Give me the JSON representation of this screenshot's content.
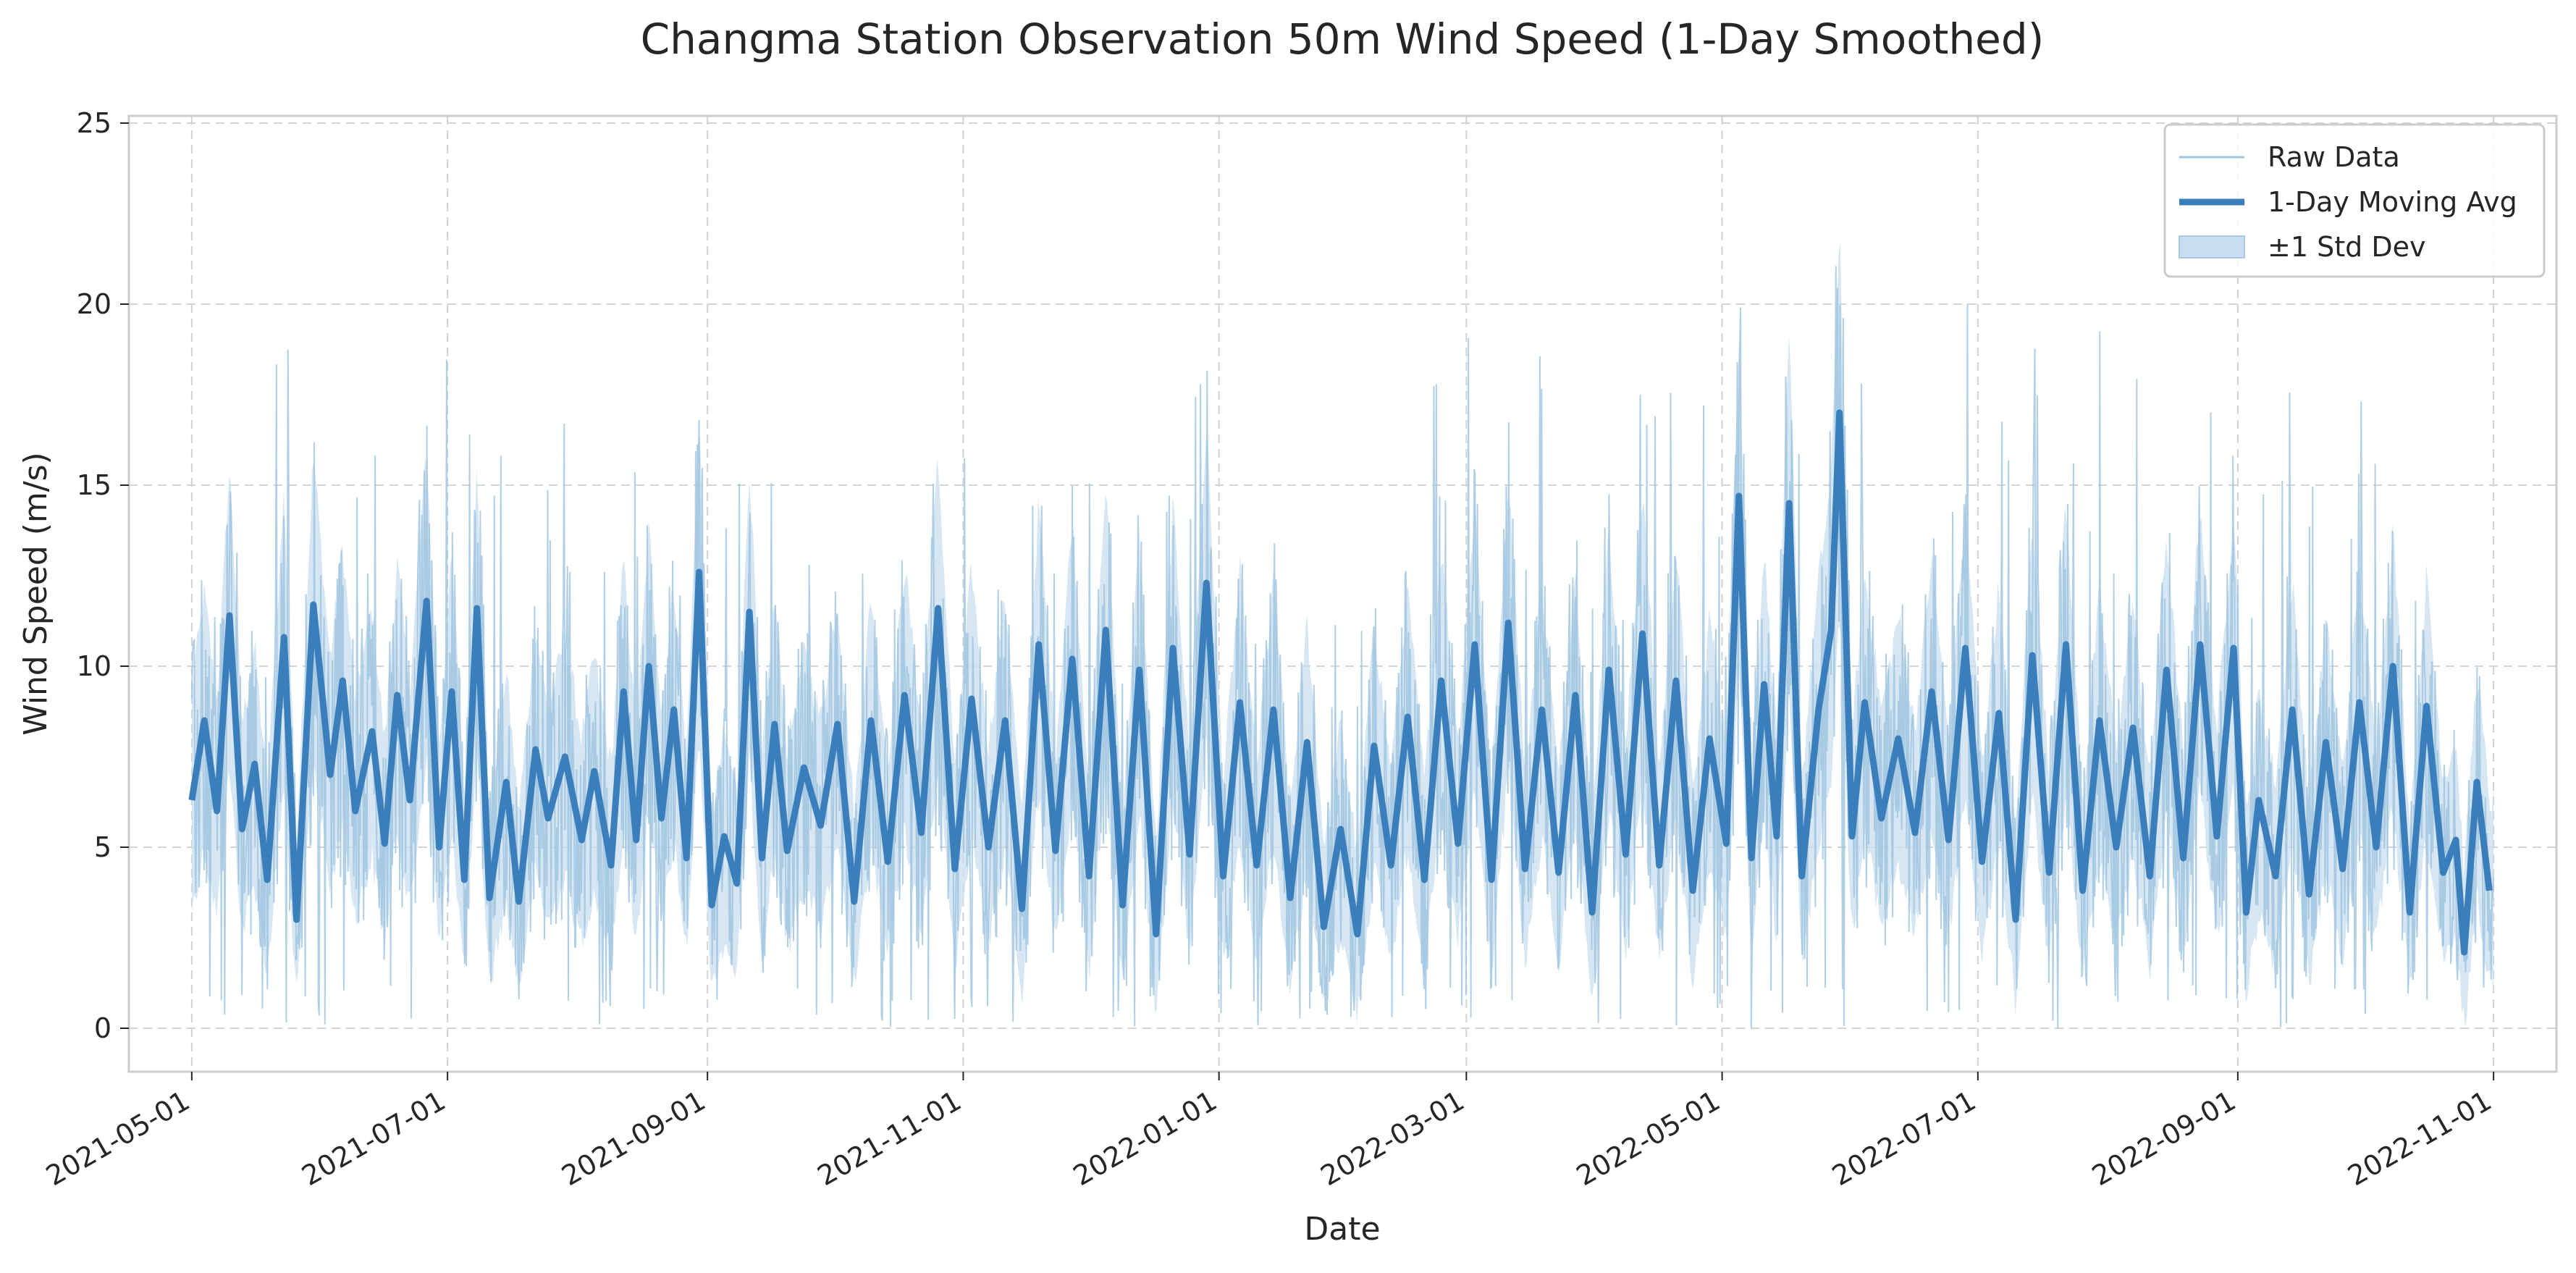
{
  "chart_data": {
    "type": "line",
    "title": "Changma Station Observation 50m Wind Speed (1-Day Smoothed)",
    "xlabel": "Date",
    "ylabel": "Wind Speed (m/s)",
    "x_range": [
      "2021-05-01",
      "2022-11-01"
    ],
    "x_ticks": [
      "2021-05-01",
      "2021-07-01",
      "2021-09-01",
      "2021-11-01",
      "2022-01-01",
      "2022-03-01",
      "2022-05-01",
      "2022-07-01",
      "2022-09-01",
      "2022-11-01"
    ],
    "ylim": [
      -1.2,
      25.2
    ],
    "y_ticks": [
      0,
      5,
      10,
      15,
      20,
      25
    ],
    "grid": true,
    "legend_position": "top-right",
    "legend": {
      "raw": "Raw Data",
      "avg": "1-Day Moving Avg",
      "band": "±1 Std Dev"
    },
    "colors": {
      "raw": "#9ec3df",
      "avg": "#3a7ebc",
      "band": "#c8ddef",
      "grid": "#d3d3d3",
      "frame": "#cccccc"
    },
    "series": [
      {
        "name": "1-Day Moving Avg",
        "points": [
          [
            "2021-05-01",
            6.3
          ],
          [
            "2021-05-04",
            8.5
          ],
          [
            "2021-05-07",
            6.0
          ],
          [
            "2021-05-10",
            11.4
          ],
          [
            "2021-05-13",
            5.5
          ],
          [
            "2021-05-16",
            7.3
          ],
          [
            "2021-05-19",
            4.1
          ],
          [
            "2021-05-23",
            10.8
          ],
          [
            "2021-05-26",
            3.0
          ],
          [
            "2021-05-30",
            11.7
          ],
          [
            "2021-06-03",
            7.0
          ],
          [
            "2021-06-06",
            9.6
          ],
          [
            "2021-06-09",
            6.0
          ],
          [
            "2021-06-13",
            8.2
          ],
          [
            "2021-06-16",
            5.1
          ],
          [
            "2021-06-19",
            9.2
          ],
          [
            "2021-06-22",
            6.3
          ],
          [
            "2021-06-26",
            11.8
          ],
          [
            "2021-06-29",
            5.0
          ],
          [
            "2021-07-02",
            9.3
          ],
          [
            "2021-07-05",
            4.1
          ],
          [
            "2021-07-08",
            11.6
          ],
          [
            "2021-07-11",
            3.6
          ],
          [
            "2021-07-15",
            6.8
          ],
          [
            "2021-07-18",
            3.5
          ],
          [
            "2021-07-22",
            7.7
          ],
          [
            "2021-07-25",
            5.8
          ],
          [
            "2021-07-29",
            7.5
          ],
          [
            "2021-08-02",
            5.2
          ],
          [
            "2021-08-05",
            7.1
          ],
          [
            "2021-08-09",
            4.5
          ],
          [
            "2021-08-12",
            9.3
          ],
          [
            "2021-08-15",
            5.2
          ],
          [
            "2021-08-18",
            10.0
          ],
          [
            "2021-08-21",
            5.8
          ],
          [
            "2021-08-24",
            8.8
          ],
          [
            "2021-08-27",
            4.7
          ],
          [
            "2021-08-30",
            12.6
          ],
          [
            "2021-09-02",
            3.4
          ],
          [
            "2021-09-05",
            5.3
          ],
          [
            "2021-09-08",
            4.0
          ],
          [
            "2021-09-11",
            11.5
          ],
          [
            "2021-09-14",
            4.7
          ],
          [
            "2021-09-17",
            8.4
          ],
          [
            "2021-09-20",
            4.9
          ],
          [
            "2021-09-24",
            7.2
          ],
          [
            "2021-09-28",
            5.6
          ],
          [
            "2021-10-02",
            8.4
          ],
          [
            "2021-10-06",
            3.5
          ],
          [
            "2021-10-10",
            8.5
          ],
          [
            "2021-10-14",
            4.6
          ],
          [
            "2021-10-18",
            9.2
          ],
          [
            "2021-10-22",
            5.4
          ],
          [
            "2021-10-26",
            11.6
          ],
          [
            "2021-10-30",
            4.4
          ],
          [
            "2021-11-03",
            9.1
          ],
          [
            "2021-11-07",
            5.0
          ],
          [
            "2021-11-11",
            8.5
          ],
          [
            "2021-11-15",
            3.3
          ],
          [
            "2021-11-19",
            10.6
          ],
          [
            "2021-11-23",
            4.9
          ],
          [
            "2021-11-27",
            10.2
          ],
          [
            "2021-12-01",
            4.2
          ],
          [
            "2021-12-05",
            11.0
          ],
          [
            "2021-12-09",
            3.4
          ],
          [
            "2021-12-13",
            9.9
          ],
          [
            "2021-12-17",
            2.6
          ],
          [
            "2021-12-21",
            10.5
          ],
          [
            "2021-12-25",
            4.8
          ],
          [
            "2021-12-29",
            12.3
          ],
          [
            "2022-01-02",
            4.2
          ],
          [
            "2022-01-06",
            9.0
          ],
          [
            "2022-01-10",
            4.5
          ],
          [
            "2022-01-14",
            8.8
          ],
          [
            "2022-01-18",
            3.6
          ],
          [
            "2022-01-22",
            7.9
          ],
          [
            "2022-01-26",
            2.8
          ],
          [
            "2022-01-30",
            5.5
          ],
          [
            "2022-02-03",
            2.6
          ],
          [
            "2022-02-07",
            7.8
          ],
          [
            "2022-02-11",
            4.5
          ],
          [
            "2022-02-15",
            8.6
          ],
          [
            "2022-02-19",
            4.1
          ],
          [
            "2022-02-23",
            9.6
          ],
          [
            "2022-02-27",
            5.1
          ],
          [
            "2022-03-03",
            10.6
          ],
          [
            "2022-03-07",
            4.1
          ],
          [
            "2022-03-11",
            11.2
          ],
          [
            "2022-03-15",
            4.4
          ],
          [
            "2022-03-19",
            8.8
          ],
          [
            "2022-03-23",
            4.3
          ],
          [
            "2022-03-27",
            9.2
          ],
          [
            "2022-03-31",
            3.2
          ],
          [
            "2022-04-04",
            9.9
          ],
          [
            "2022-04-08",
            4.8
          ],
          [
            "2022-04-12",
            10.9
          ],
          [
            "2022-04-16",
            4.5
          ],
          [
            "2022-04-20",
            9.6
          ],
          [
            "2022-04-24",
            3.8
          ],
          [
            "2022-04-28",
            8.0
          ],
          [
            "2022-05-02",
            5.1
          ],
          [
            "2022-05-05",
            14.7
          ],
          [
            "2022-05-08",
            4.7
          ],
          [
            "2022-05-11",
            9.5
          ],
          [
            "2022-05-14",
            5.3
          ],
          [
            "2022-05-17",
            14.5
          ],
          [
            "2022-05-20",
            4.2
          ],
          [
            "2022-05-24",
            8.8
          ],
          [
            "2022-05-27",
            11.0
          ],
          [
            "2022-05-29",
            17.0
          ],
          [
            "2022-06-01",
            5.3
          ],
          [
            "2022-06-04",
            9.0
          ],
          [
            "2022-06-08",
            5.8
          ],
          [
            "2022-06-12",
            8.0
          ],
          [
            "2022-06-16",
            5.4
          ],
          [
            "2022-06-20",
            9.3
          ],
          [
            "2022-06-24",
            5.2
          ],
          [
            "2022-06-28",
            10.5
          ],
          [
            "2022-07-02",
            4.6
          ],
          [
            "2022-07-06",
            8.7
          ],
          [
            "2022-07-10",
            3.0
          ],
          [
            "2022-07-14",
            10.3
          ],
          [
            "2022-07-18",
            4.3
          ],
          [
            "2022-07-22",
            10.6
          ],
          [
            "2022-07-26",
            3.8
          ],
          [
            "2022-07-30",
            8.5
          ],
          [
            "2022-08-03",
            5.0
          ],
          [
            "2022-08-07",
            8.3
          ],
          [
            "2022-08-11",
            4.2
          ],
          [
            "2022-08-15",
            9.9
          ],
          [
            "2022-08-19",
            4.7
          ],
          [
            "2022-08-23",
            10.6
          ],
          [
            "2022-08-27",
            5.3
          ],
          [
            "2022-08-31",
            10.5
          ],
          [
            "2022-09-03",
            3.2
          ],
          [
            "2022-09-06",
            6.3
          ],
          [
            "2022-09-10",
            4.2
          ],
          [
            "2022-09-14",
            8.8
          ],
          [
            "2022-09-18",
            3.7
          ],
          [
            "2022-09-22",
            7.9
          ],
          [
            "2022-09-26",
            4.4
          ],
          [
            "2022-09-30",
            9.0
          ],
          [
            "2022-10-04",
            5.0
          ],
          [
            "2022-10-08",
            10.0
          ],
          [
            "2022-10-12",
            3.2
          ],
          [
            "2022-10-16",
            8.9
          ],
          [
            "2022-10-20",
            4.3
          ],
          [
            "2022-10-23",
            5.2
          ],
          [
            "2022-10-25",
            2.1
          ],
          [
            "2022-10-28",
            6.8
          ],
          [
            "2022-10-31",
            3.8
          ]
        ]
      }
    ]
  }
}
